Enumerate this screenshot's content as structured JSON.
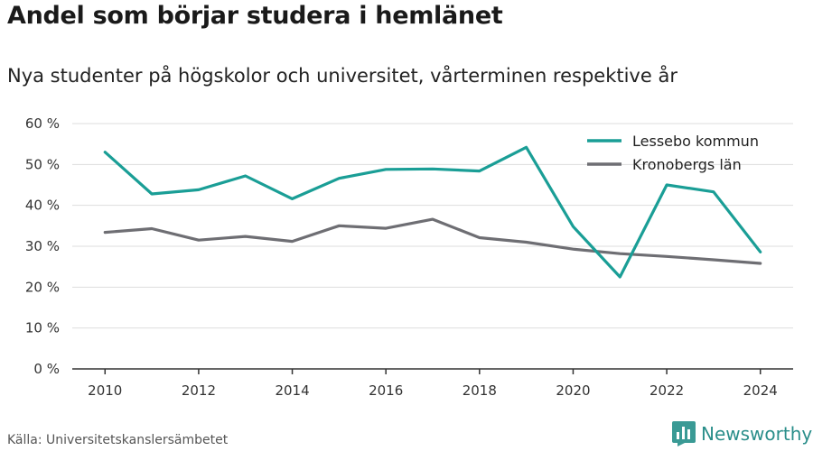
{
  "title": "Andel som börjar studera i hemlänet",
  "subtitle": "Nya studenter på högskolor och universitet, vårterminen respektive år",
  "source": "Källa: Universitetskanslersämbetet",
  "brand": {
    "name": "Newsworthy",
    "logo_icon": "bar-chart-logo-icon",
    "color": "#3a9a95"
  },
  "colors": {
    "grid": "#dddddd",
    "axis": "#333333"
  },
  "chart_data": {
    "type": "line",
    "x": [
      2010,
      2011,
      2012,
      2013,
      2014,
      2015,
      2016,
      2017,
      2018,
      2019,
      2020,
      2021,
      2022,
      2023,
      2024
    ],
    "xlim": [
      2009.3,
      2024.7
    ],
    "ylim": [
      0,
      60
    ],
    "y_ticks": [
      0,
      10,
      20,
      30,
      40,
      50,
      60
    ],
    "y_tick_labels": [
      "0 %",
      "10 %",
      "20 %",
      "30 %",
      "40 %",
      "50 %",
      "60 %"
    ],
    "x_ticks": [
      2010,
      2012,
      2014,
      2016,
      2018,
      2020,
      2022,
      2024
    ],
    "x_tick_labels": [
      "2010",
      "2012",
      "2014",
      "2016",
      "2018",
      "2020",
      "2022",
      "2024"
    ],
    "grid": true,
    "legend_position": "top-right",
    "series": [
      {
        "name": "Lessebo kommun",
        "color": "#1a9e96",
        "values": [
          53.0,
          42.8,
          43.8,
          47.2,
          41.6,
          46.6,
          48.8,
          48.9,
          48.4,
          54.2,
          34.8,
          22.5,
          45.0,
          43.3,
          28.6
        ]
      },
      {
        "name": "Kronobergs län",
        "color": "#6e6e73",
        "values": [
          33.4,
          34.3,
          31.5,
          32.4,
          31.2,
          35.0,
          34.4,
          36.6,
          32.1,
          31.0,
          29.3,
          28.2,
          27.5,
          26.7,
          25.8
        ]
      }
    ]
  }
}
